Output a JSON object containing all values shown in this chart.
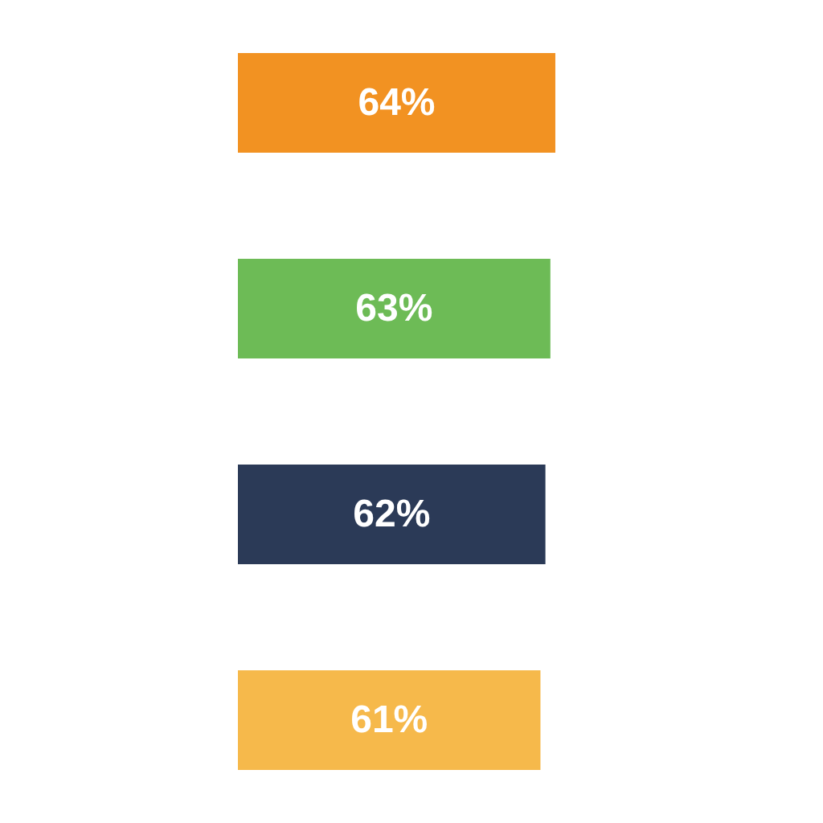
{
  "chart_data": {
    "type": "bar",
    "orientation": "horizontal",
    "categories": [
      null,
      null,
      null,
      null
    ],
    "values": [
      64,
      63,
      62,
      61
    ],
    "colors": [
      "#f29222",
      "#6dbb56",
      "#2b3a57",
      "#f6b94b"
    ],
    "value_labels": [
      "64%",
      "63%",
      "62%",
      "61%"
    ]
  }
}
